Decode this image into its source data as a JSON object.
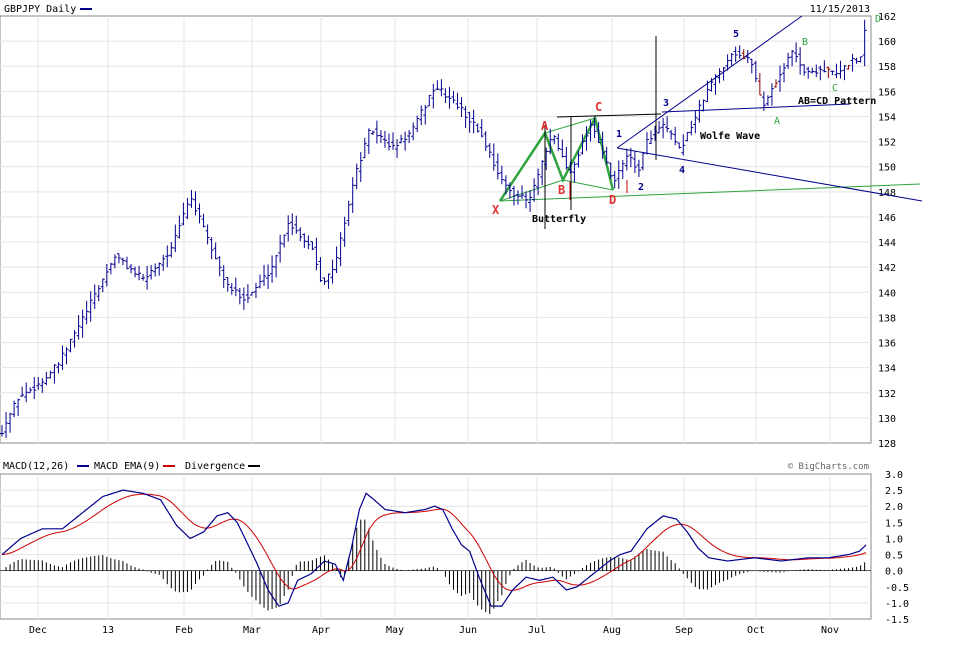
{
  "chart_data": [
    {
      "type": "ohlc",
      "title": "GBPJPY Daily",
      "date": "11/15/2013",
      "ylim": [
        128,
        162
      ],
      "y_ticks": [
        "162",
        "160",
        "158",
        "156",
        "154",
        "152",
        "150",
        "148",
        "146",
        "144",
        "142",
        "140",
        "138",
        "136",
        "134",
        "132",
        "130",
        "128"
      ],
      "x_ticks": [
        "Dec",
        "13",
        "Feb",
        "Mar",
        "Apr",
        "May",
        "Jun",
        "Jul",
        "Aug",
        "Sep",
        "Oct",
        "Nov"
      ],
      "grid": true,
      "anchors": [
        [
          129.0,
          0
        ],
        [
          131.6,
          12
        ],
        [
          132.8,
          29
        ],
        [
          134.3,
          42
        ],
        [
          138.5,
          63
        ],
        [
          142.9,
          84
        ],
        [
          141.0,
          105
        ],
        [
          141.8,
          112
        ],
        [
          143.4,
          126
        ],
        [
          147.7,
          140
        ],
        [
          143.7,
          155
        ],
        [
          140.4,
          168
        ],
        [
          139.5,
          182
        ],
        [
          141.8,
          200
        ],
        [
          145.6,
          213
        ],
        [
          143.5,
          231
        ],
        [
          140.8,
          238
        ],
        [
          141.8,
          247
        ],
        [
          149.0,
          262
        ],
        [
          153.0,
          274
        ],
        [
          151.5,
          291
        ],
        [
          152.8,
          305
        ],
        [
          156.4,
          322
        ],
        [
          155.0,
          338
        ],
        [
          152.7,
          356
        ],
        [
          148.4,
          374
        ],
        [
          147.2,
          392
        ],
        [
          152.6,
          410
        ],
        [
          149.4,
          422
        ],
        [
          153.6,
          439
        ],
        [
          148.6,
          455
        ],
        [
          151.0,
          465
        ],
        [
          149.6,
          473
        ],
        [
          152.3,
          481
        ],
        [
          153.3,
          493
        ],
        [
          151.3,
          504
        ],
        [
          153.0,
          512
        ],
        [
          156.3,
          526
        ],
        [
          159.2,
          544
        ],
        [
          158.3,
          558
        ],
        [
          154.8,
          566
        ],
        [
          157.0,
          577
        ],
        [
          159.3,
          589
        ],
        [
          157.4,
          598
        ],
        [
          157.8,
          610
        ],
        [
          157.3,
          622
        ],
        [
          158.5,
          632
        ],
        [
          158.4,
          638
        ],
        [
          161.2,
          643
        ]
      ],
      "pattern_labels": [
        {
          "text": "X",
          "color": "red"
        },
        {
          "text": "A",
          "color": "red"
        },
        {
          "text": "B",
          "color": "red"
        },
        {
          "text": "C",
          "color": "red"
        },
        {
          "text": "D",
          "color": "red"
        },
        {
          "text": "Butterfly",
          "color": "black"
        },
        {
          "text": "1",
          "color": "navy"
        },
        {
          "text": "2",
          "color": "navy"
        },
        {
          "text": "3",
          "color": "navy"
        },
        {
          "text": "4",
          "color": "navy"
        },
        {
          "text": "5",
          "color": "navy"
        },
        {
          "text": "Wolfe Wave",
          "color": "black"
        },
        {
          "text": "A",
          "color": "green"
        },
        {
          "text": "B",
          "color": "green"
        },
        {
          "text": "C",
          "color": "green"
        },
        {
          "text": "D",
          "color": "green"
        },
        {
          "text": "AB=CD Pattern",
          "color": "black"
        }
      ]
    },
    {
      "type": "line",
      "title": "MACD(12,26)",
      "ylim": [
        -1.5,
        3.0
      ],
      "y_ticks": [
        "3.0",
        "2.5",
        "2.0",
        "1.5",
        "1.0",
        "0.5",
        "0.0",
        "-0.5",
        "-1.0",
        "-1.5"
      ],
      "series": [
        {
          "name": "MACD EMA(9)",
          "color": "#00008b"
        },
        {
          "name": "Divergence",
          "color": "#000000"
        }
      ],
      "legend_extra_color": "#cc0000",
      "macd_anchors": [
        [
          0.5,
          0
        ],
        [
          1.0,
          14
        ],
        [
          1.3,
          30
        ],
        [
          1.3,
          45
        ],
        [
          1.8,
          60
        ],
        [
          2.3,
          75
        ],
        [
          2.5,
          90
        ],
        [
          2.4,
          105
        ],
        [
          2.2,
          118
        ],
        [
          1.4,
          130
        ],
        [
          1.0,
          140
        ],
        [
          1.2,
          150
        ],
        [
          1.7,
          160
        ],
        [
          1.8,
          168
        ],
        [
          1.5,
          175
        ],
        [
          0.9,
          182
        ],
        [
          0.2,
          190
        ],
        [
          -0.6,
          198
        ],
        [
          -1.1,
          206
        ],
        [
          -1.0,
          213
        ],
        [
          -0.3,
          220
        ],
        [
          -0.1,
          230
        ],
        [
          0.3,
          240
        ],
        [
          0.2,
          248
        ],
        [
          -0.3,
          254
        ],
        [
          0.7,
          260
        ],
        [
          1.9,
          266
        ],
        [
          2.4,
          271
        ],
        [
          2.2,
          277
        ],
        [
          1.9,
          285
        ],
        [
          1.8,
          300
        ],
        [
          1.9,
          315
        ],
        [
          2.0,
          322
        ],
        [
          1.9,
          328
        ],
        [
          1.3,
          335
        ],
        [
          0.8,
          342
        ],
        [
          0.6,
          348
        ],
        [
          -0.3,
          356
        ],
        [
          -1.1,
          364
        ],
        [
          -1.1,
          372
        ],
        [
          -0.6,
          380
        ],
        [
          -0.2,
          390
        ],
        [
          -0.3,
          400
        ],
        [
          -0.2,
          410
        ],
        [
          -0.6,
          420
        ],
        [
          -0.5,
          428
        ],
        [
          -0.1,
          440
        ],
        [
          0.3,
          452
        ],
        [
          0.5,
          460
        ],
        [
          0.6,
          468
        ],
        [
          1.3,
          480
        ],
        [
          1.7,
          492
        ],
        [
          1.6,
          502
        ],
        [
          1.2,
          510
        ],
        [
          0.7,
          518
        ],
        [
          0.4,
          526
        ],
        [
          0.3,
          540
        ],
        [
          0.4,
          560
        ],
        [
          0.3,
          580
        ],
        [
          0.4,
          600
        ],
        [
          0.4,
          615
        ],
        [
          0.5,
          630
        ],
        [
          0.6,
          638
        ],
        [
          0.8,
          643
        ]
      ],
      "watermark": "© BigCharts.com"
    }
  ]
}
